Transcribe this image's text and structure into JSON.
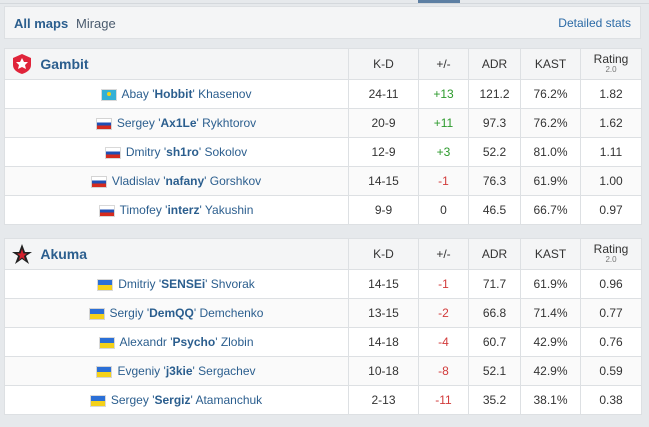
{
  "tabs": [
    {
      "label": "All maps",
      "active": true
    },
    {
      "label": "Mirage",
      "active": false
    }
  ],
  "detailed_stats_label": "Detailed stats",
  "columns": {
    "kd": "K-D",
    "diff": "+/-",
    "adr": "ADR",
    "kast": "KAST",
    "rating": "Rating",
    "rating_version": "2.0"
  },
  "teams": [
    {
      "name": "Gambit",
      "logo_icon": "gambit-logo-icon",
      "players": [
        {
          "flag": "kz",
          "first": "Abay",
          "nick": "Hobbit",
          "last": "Khasenov",
          "kd": "24-11",
          "diff": "+13",
          "adr": "121.2",
          "kast": "76.2%",
          "rating": "1.82"
        },
        {
          "flag": "ru",
          "first": "Sergey",
          "nick": "Ax1Le",
          "last": "Rykhtorov",
          "kd": "20-9",
          "diff": "+11",
          "adr": "97.3",
          "kast": "76.2%",
          "rating": "1.62"
        },
        {
          "flag": "ru",
          "first": "Dmitry",
          "nick": "sh1ro",
          "last": "Sokolov",
          "kd": "12-9",
          "diff": "+3",
          "adr": "52.2",
          "kast": "81.0%",
          "rating": "1.11"
        },
        {
          "flag": "ru",
          "first": "Vladislav",
          "nick": "nafany",
          "last": "Gorshkov",
          "kd": "14-15",
          "diff": "-1",
          "adr": "76.3",
          "kast": "61.9%",
          "rating": "1.00"
        },
        {
          "flag": "ru",
          "first": "Timofey",
          "nick": "interz",
          "last": "Yakushin",
          "kd": "9-9",
          "diff": "0",
          "adr": "46.5",
          "kast": "66.7%",
          "rating": "0.97"
        }
      ]
    },
    {
      "name": "Akuma",
      "logo_icon": "akuma-logo-icon",
      "players": [
        {
          "flag": "ua",
          "first": "Dmitriy",
          "nick": "SENSEi",
          "last": "Shvorak",
          "kd": "14-15",
          "diff": "-1",
          "adr": "71.7",
          "kast": "61.9%",
          "rating": "0.96"
        },
        {
          "flag": "ua",
          "first": "Sergiy",
          "nick": "DemQQ",
          "last": "Demchenko",
          "kd": "13-15",
          "diff": "-2",
          "adr": "66.8",
          "kast": "71.4%",
          "rating": "0.77"
        },
        {
          "flag": "ua",
          "first": "Alexandr",
          "nick": "Psycho",
          "last": "Zlobin",
          "kd": "14-18",
          "diff": "-4",
          "adr": "60.7",
          "kast": "42.9%",
          "rating": "0.76"
        },
        {
          "flag": "ua",
          "first": "Evgeniy",
          "nick": "j3kie",
          "last": "Sergachev",
          "kd": "10-18",
          "diff": "-8",
          "adr": "52.1",
          "kast": "42.9%",
          "rating": "0.59"
        },
        {
          "flag": "ua",
          "first": "Sergey",
          "nick": "Sergiz",
          "last": "Atamanchuk",
          "kd": "2-13",
          "diff": "-11",
          "adr": "35.2",
          "kast": "38.1%",
          "rating": "0.38"
        }
      ]
    }
  ],
  "colors": {
    "positive": "#2c9a2c",
    "negative": "#d13a3a",
    "link": "#2b5e8e",
    "gambit_red": "#e0243a"
  }
}
